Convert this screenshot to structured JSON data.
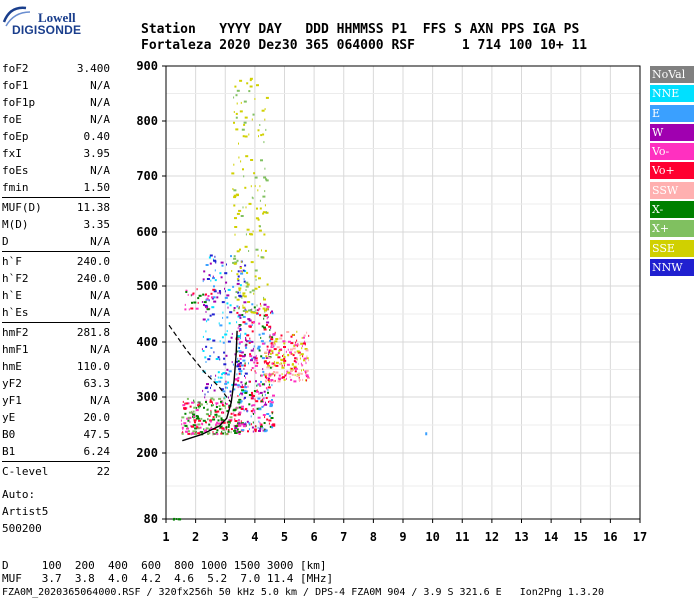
{
  "logo": {
    "brand": "Lowell",
    "product": "DIGISONDE"
  },
  "header": {
    "labels_line": "Station   YYYY DAY   DDD HHMMSS P1  FFS S AXN PPS IGA PS",
    "values_line": "Fortaleza 2020 Dez30 365 064000 RSF      1 714 100 10+ 11"
  },
  "parameters": [
    [
      {
        "label": "foF2",
        "value": "3.400"
      },
      {
        "label": "foF1",
        "value": "N/A"
      },
      {
        "label": "foF1p",
        "value": "N/A"
      },
      {
        "label": "foE",
        "value": "N/A"
      },
      {
        "label": "foEp",
        "value": "0.40"
      },
      {
        "label": "fxI",
        "value": "3.95"
      },
      {
        "label": "foEs",
        "value": "N/A"
      },
      {
        "label": "fmin",
        "value": "1.50"
      }
    ],
    [
      {
        "label": "MUF(D)",
        "value": "11.38"
      },
      {
        "label": "M(D)",
        "value": "3.35"
      },
      {
        "label": "D",
        "value": "N/A"
      }
    ],
    [
      {
        "label": "h`F",
        "value": "240.0"
      },
      {
        "label": "h`F2",
        "value": "240.0"
      },
      {
        "label": "h`E",
        "value": "N/A"
      },
      {
        "label": "h`Es",
        "value": "N/A"
      }
    ],
    [
      {
        "label": "hmF2",
        "value": "281.8"
      },
      {
        "label": "hmF1",
        "value": "N/A"
      },
      {
        "label": "hmE",
        "value": "110.0"
      },
      {
        "label": "yF2",
        "value": "63.3"
      },
      {
        "label": "yF1",
        "value": "N/A"
      },
      {
        "label": "yE",
        "value": "20.0"
      },
      {
        "label": "B0",
        "value": "47.5"
      },
      {
        "label": "B1",
        "value": "6.24"
      }
    ],
    [
      {
        "label": "C-level",
        "value": "22"
      }
    ]
  ],
  "autoscaling": {
    "line1": "Auto:",
    "line2": "Artist5",
    "line3": "500200"
  },
  "legend": [
    {
      "label": "NoVal",
      "color": "#808080"
    },
    {
      "label": "NNE",
      "color": "#00e0ff"
    },
    {
      "label": "E",
      "color": "#3aa0ff"
    },
    {
      "label": "W",
      "color": "#a000b0"
    },
    {
      "label": "Vo-",
      "color": "#ff30c0"
    },
    {
      "label": "Vo+",
      "color": "#ff0030"
    },
    {
      "label": "SSW",
      "color": "#ffb0b0"
    },
    {
      "label": "X-",
      "color": "#008000"
    },
    {
      "label": "X+",
      "color": "#80c060"
    },
    {
      "label": "SSE",
      "color": "#d0d000"
    },
    {
      "label": "NNW",
      "color": "#2020d0"
    }
  ],
  "footer": {
    "d_line": "D     100  200  400  600  800 1000 1500 3000 [km]",
    "muf_line": "MUF   3.7  3.8  4.0  4.2  4.6  5.2  7.0 11.4 [MHz]",
    "info_line": "FZA0M_2020365064000.RSF / 320fx256h 50 kHz 5.0 km / DPS-4 FZA0M 904 / 3.9 S 321.6 E   Ion2Png 1.3.20"
  },
  "chart_data": {
    "type": "scatter",
    "title": "",
    "xlabel": "",
    "ylabel": "",
    "xlim": [
      1,
      17
    ],
    "ylim": [
      80,
      900
    ],
    "grid": true,
    "x_ticks": [
      1,
      2,
      3,
      4,
      5,
      6,
      7,
      8,
      9,
      10,
      11,
      12,
      13,
      14,
      15,
      16,
      17
    ],
    "y_ticks": [
      80,
      200,
      300,
      400,
      500,
      600,
      700,
      800,
      900
    ],
    "scale_note": "y axis: virtual height in km (nonlinear); x axis: frequency in MHz",
    "echo_clusters": [
      {
        "x_range": [
          1.5,
          3.5
        ],
        "y_range": [
          235,
          300
        ],
        "colors": [
          "#ff0030",
          "#ff30c0",
          "#008000",
          "#80c060"
        ],
        "count": 260
      },
      {
        "x_range": [
          3.3,
          4.6
        ],
        "y_range": [
          240,
          470
        ],
        "colors": [
          "#ff0030",
          "#ff30c0",
          "#008000",
          "#a000b0",
          "#3aa0ff"
        ],
        "count": 320
      },
      {
        "x_range": [
          2.2,
          3.7
        ],
        "y_range": [
          300,
          560
        ],
        "colors": [
          "#3aa0ff",
          "#00e0ff",
          "#2020d0",
          "#a000b0"
        ],
        "count": 200
      },
      {
        "x_range": [
          3.2,
          4.4
        ],
        "y_range": [
          450,
          880
        ],
        "colors": [
          "#d0d000",
          "#80c060",
          "#d0d000"
        ],
        "count": 170
      },
      {
        "x_range": [
          4.3,
          5.8
        ],
        "y_range": [
          330,
          420
        ],
        "colors": [
          "#d0d000",
          "#ffb0b0",
          "#ff30c0",
          "#ff0030"
        ],
        "count": 200
      },
      {
        "x_range": [
          1.6,
          2.6
        ],
        "y_range": [
          460,
          500
        ],
        "colors": [
          "#ff0030",
          "#008000",
          "#ff30c0"
        ],
        "count": 30
      },
      {
        "x_range": [
          1.2,
          1.5
        ],
        "y_range": [
          80,
          82
        ],
        "colors": [
          "#008000"
        ],
        "count": 6
      }
    ],
    "isolated_points": [
      {
        "x": 9.75,
        "y": 237,
        "color": "#3aa0ff"
      }
    ],
    "profile_solid": [
      [
        1.55,
        222
      ],
      [
        2.2,
        233
      ],
      [
        2.8,
        248
      ],
      [
        3.05,
        262
      ],
      [
        3.2,
        290
      ],
      [
        3.3,
        330
      ],
      [
        3.37,
        380
      ],
      [
        3.4,
        420
      ]
    ],
    "profile_dashed": [
      [
        1.1,
        430
      ],
      [
        1.7,
        385
      ],
      [
        2.3,
        345
      ],
      [
        2.8,
        318
      ],
      [
        3.05,
        300
      ],
      [
        3.2,
        290
      ]
    ]
  }
}
